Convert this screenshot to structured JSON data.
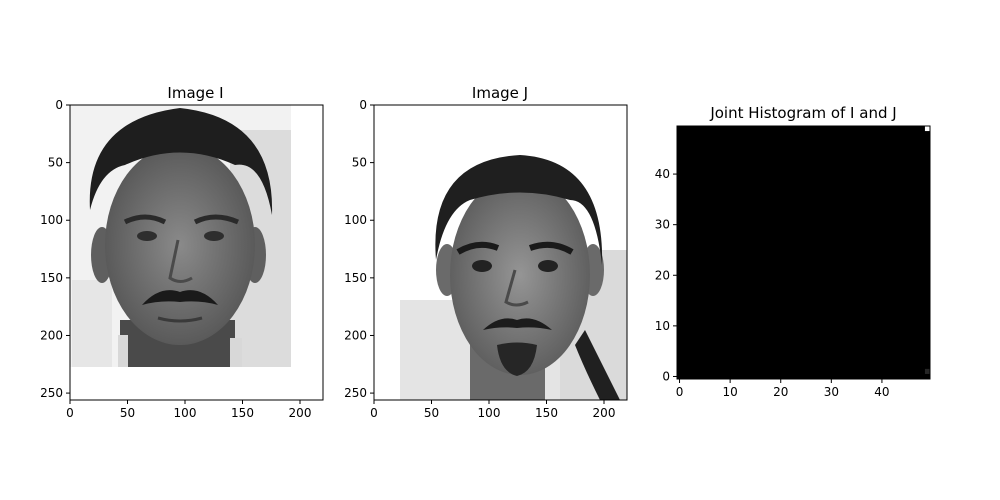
{
  "chart_data": [
    {
      "type": "heatmap",
      "title": "Image I",
      "content": "grayscale face photograph",
      "xlim": [
        0,
        220
      ],
      "ylim": [
        256,
        0
      ],
      "xticks": [
        0,
        50,
        100,
        150,
        200
      ],
      "yticks": [
        0,
        50,
        100,
        150,
        200,
        250
      ],
      "image_extent_x": [
        0,
        192
      ],
      "image_extent_y": [
        0,
        227
      ]
    },
    {
      "type": "heatmap",
      "title": "Image J",
      "content": "grayscale face photograph",
      "xlim": [
        0,
        220
      ],
      "ylim": [
        256,
        0
      ],
      "xticks": [
        0,
        50,
        100,
        150,
        200
      ],
      "yticks": [
        0,
        50,
        100,
        150,
        200,
        250
      ],
      "image_extent_x": [
        0,
        220
      ],
      "image_extent_y": [
        0,
        256
      ]
    },
    {
      "type": "heatmap",
      "title": "Joint Histogram of I and J",
      "xlim": [
        -0.5,
        49.5
      ],
      "ylim": [
        -0.5,
        49.5
      ],
      "xticks": [
        0,
        10,
        20,
        30,
        40
      ],
      "yticks": [
        0,
        10,
        20,
        30,
        40
      ],
      "background_color": "#000000",
      "bright_cells": [
        {
          "x": 49,
          "y": 49,
          "value": 1.0
        },
        {
          "x": 49,
          "y": 1,
          "value": 0.15
        }
      ]
    }
  ]
}
